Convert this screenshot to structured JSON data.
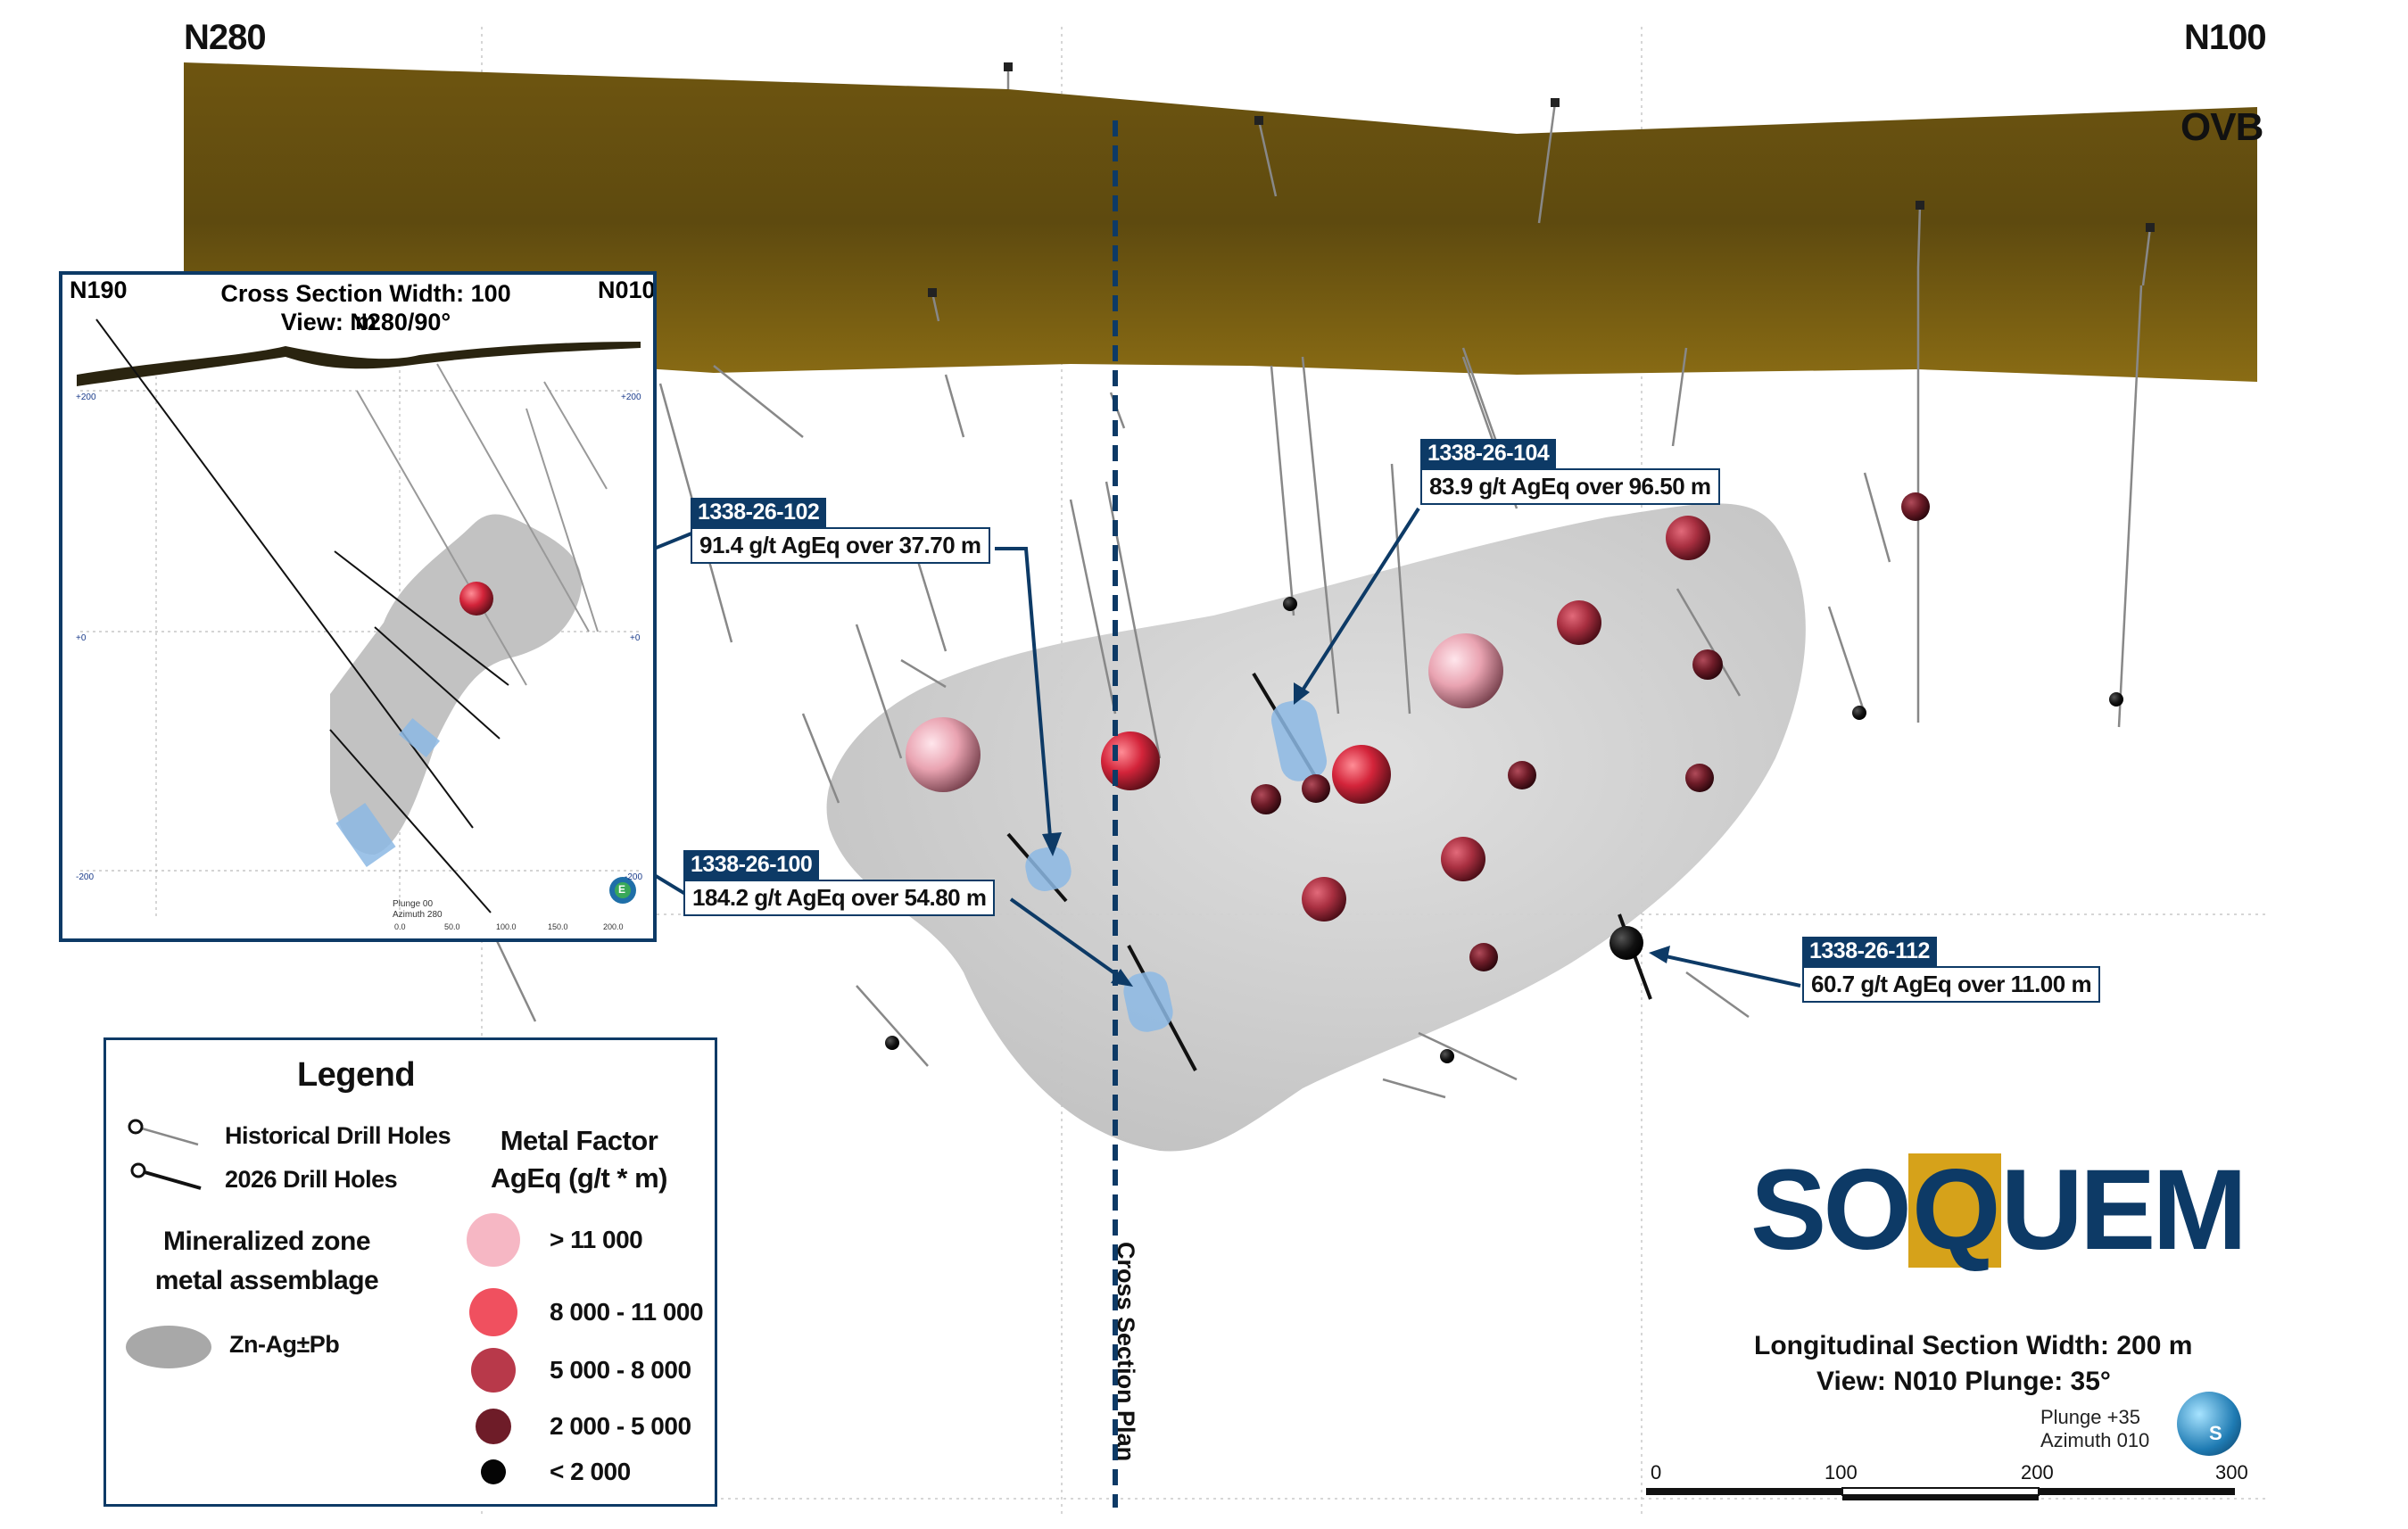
{
  "main_view": {
    "corner_left": "N280",
    "corner_right": "N100",
    "ovb_label": "OVB",
    "cross_section_plan_label": "Cross Section Plan",
    "footer_line1": "Longitudinal Section Width: 200 m",
    "footer_line2": "View: N010  Plunge: 35°",
    "orientation_line1": "Plunge +35",
    "orientation_line2": "Azimuth 010",
    "compass_letter": "S",
    "scale_ticks": [
      "0",
      "100",
      "200",
      "300"
    ]
  },
  "callouts": [
    {
      "hole": "1338-26-102",
      "result": "91.4 g/t AgEq over 37.70 m"
    },
    {
      "hole": "1338-26-104",
      "result": "83.9 g/t AgEq over 96.50 m"
    },
    {
      "hole": "1338-26-100",
      "result": "184.2 g/t AgEq over 54.80 m"
    },
    {
      "hole": "1338-26-112",
      "result": "60.7 g/t AgEq over 11.00 m"
    }
  ],
  "inset": {
    "corner_left": "N190",
    "corner_right": "N010",
    "title_line1": "Cross Section Width: 100 m",
    "title_line2": "View: N280/90°",
    "elev_labels": [
      "+200",
      "+200",
      "+0",
      "+0",
      "-200",
      "-200"
    ],
    "axis_ticks": [
      "0.0",
      "50.0",
      "100.0",
      "150.0",
      "200.0"
    ],
    "orientation_line1": "Plunge 00",
    "orientation_line2": "Azimuth 280",
    "compass_letter": "E"
  },
  "legend": {
    "title": "Legend",
    "historical": "Historical Drill Holes",
    "drill2026": "2026 Drill Holes",
    "mz_line1": "Mineralized zone",
    "mz_line2": "metal assemblage",
    "zone_name": "Zn-Ag±Pb",
    "mf_line1": "Metal Factor",
    "mf_line2": "AgEq (g/t * m)",
    "classes": [
      {
        "label": "> 11 000",
        "color": "#f6b7c4"
      },
      {
        "label": "8 000 - 11 000",
        "color": "#f0505f"
      },
      {
        "label": "5 000 - 8 000",
        "color": "#b8394a"
      },
      {
        "label": "2 000 - 5 000",
        "color": "#6e1c28"
      },
      {
        "label": "< 2 000",
        "color": "#050505"
      }
    ]
  },
  "logo": {
    "text_left": "SO",
    "text_q": "Q",
    "text_right": "UEM",
    "color_blue": "#0d3a66",
    "color_gold": "#d6a21a"
  },
  "colors": {
    "overburden": "#7a5f12",
    "zone": "#c9c9c9",
    "navy": "#0d3a66",
    "drill_2026": "#8cb8e4"
  }
}
